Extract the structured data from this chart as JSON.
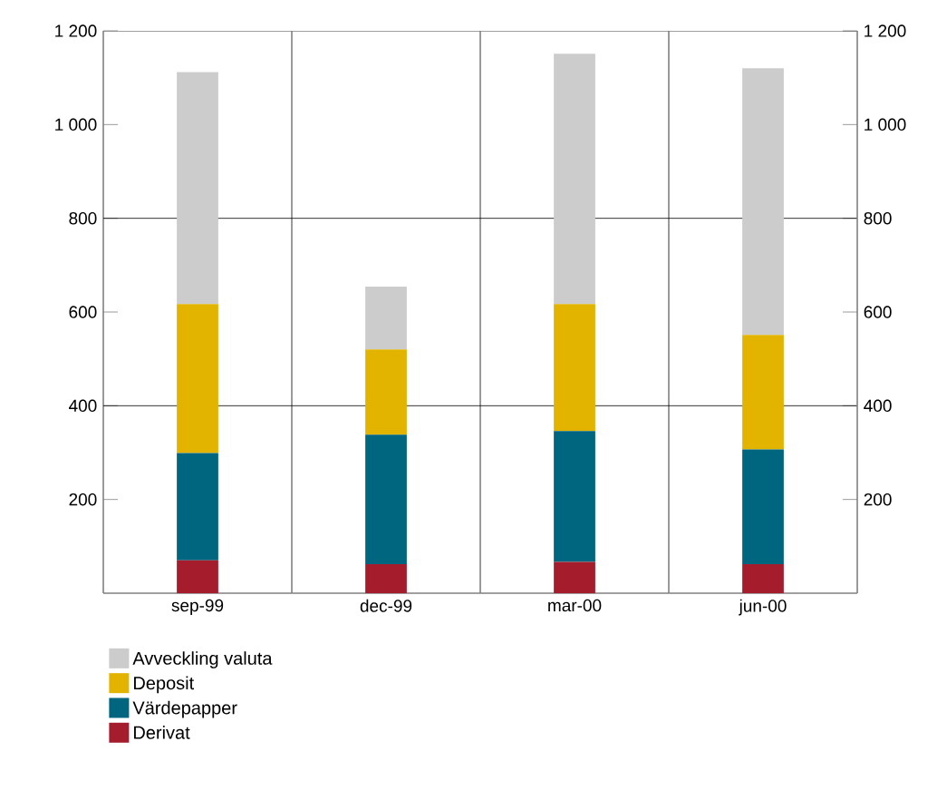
{
  "chart_data": {
    "type": "bar",
    "stacked": true,
    "categories": [
      "sep-99",
      "dec-99",
      "mar-00",
      "jun-00"
    ],
    "series": [
      {
        "name": "Derivat",
        "color": "#a51d2d",
        "values": [
          70,
          62,
          67,
          62
        ]
      },
      {
        "name": "Värdepapper",
        "color": "#006680",
        "values": [
          229,
          276,
          279,
          245
        ]
      },
      {
        "name": "Deposit",
        "color": "#e2b400",
        "values": [
          318,
          182,
          271,
          244
        ]
      },
      {
        "name": "Avveckling valuta",
        "color": "#cccccc",
        "values": [
          495,
          134,
          534,
          569
        ]
      }
    ],
    "ylim": [
      0,
      1200
    ],
    "yticks": [
      200,
      400,
      600,
      800,
      {
        "value": 1000,
        "label": "1 000"
      },
      {
        "value": 1200,
        "label": "1 200"
      }
    ],
    "y2lim": [
      0,
      1200
    ],
    "y2ticks": [
      200,
      400,
      600,
      800,
      {
        "value": 1000,
        "label": "1 000"
      },
      {
        "value": 1200,
        "label": "1 200"
      }
    ],
    "grid": "x",
    "ref_lines": [
      {
        "axis": "y",
        "value": 400
      },
      {
        "axis": "y",
        "value": 800
      }
    ],
    "legend": "bottom left"
  }
}
